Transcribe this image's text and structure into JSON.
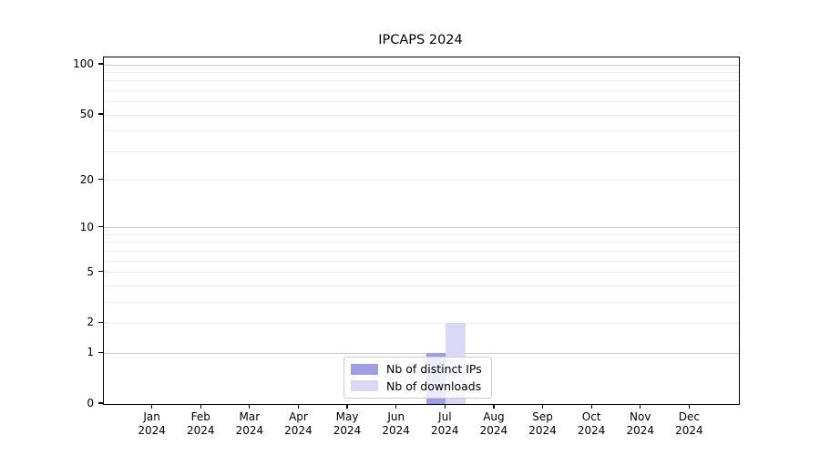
{
  "title": "IPCAPS 2024",
  "chart_data": {
    "type": "bar",
    "title": "IPCAPS 2024",
    "categories": [
      "Jan",
      "Feb",
      "Mar",
      "Apr",
      "May",
      "Jun",
      "Jul",
      "Aug",
      "Sep",
      "Oct",
      "Nov",
      "Dec"
    ],
    "category_year": "2024",
    "series": [
      {
        "name": "Nb of distinct IPs",
        "color": "#9e9ee6",
        "values": [
          0,
          0,
          0,
          0,
          0,
          0,
          1,
          0,
          0,
          0,
          0,
          0
        ]
      },
      {
        "name": "Nb of downloads",
        "color": "#d9d9f6",
        "values": [
          0,
          0,
          0,
          0,
          0,
          0,
          2,
          0,
          0,
          0,
          0,
          0
        ]
      }
    ],
    "xlabel": "",
    "ylabel": "",
    "y_scale": "log1p",
    "ylim": [
      0,
      110
    ],
    "y_tick_values": [
      0,
      1,
      2,
      5,
      10,
      20,
      50,
      100
    ],
    "y_gridlines_major": [
      1,
      10,
      100
    ],
    "y_gridlines_minor": [
      2,
      3,
      4,
      5,
      6,
      7,
      8,
      9,
      20,
      30,
      40,
      50,
      60,
      70,
      80,
      90
    ],
    "grid": "horizontal",
    "legend_position": "lower center"
  },
  "colors": {
    "axis": "#000000",
    "grid_major": "#c9c9c9",
    "grid_minor": "#ededed",
    "legend_border": "#cccccc",
    "background": "#ffffff"
  }
}
